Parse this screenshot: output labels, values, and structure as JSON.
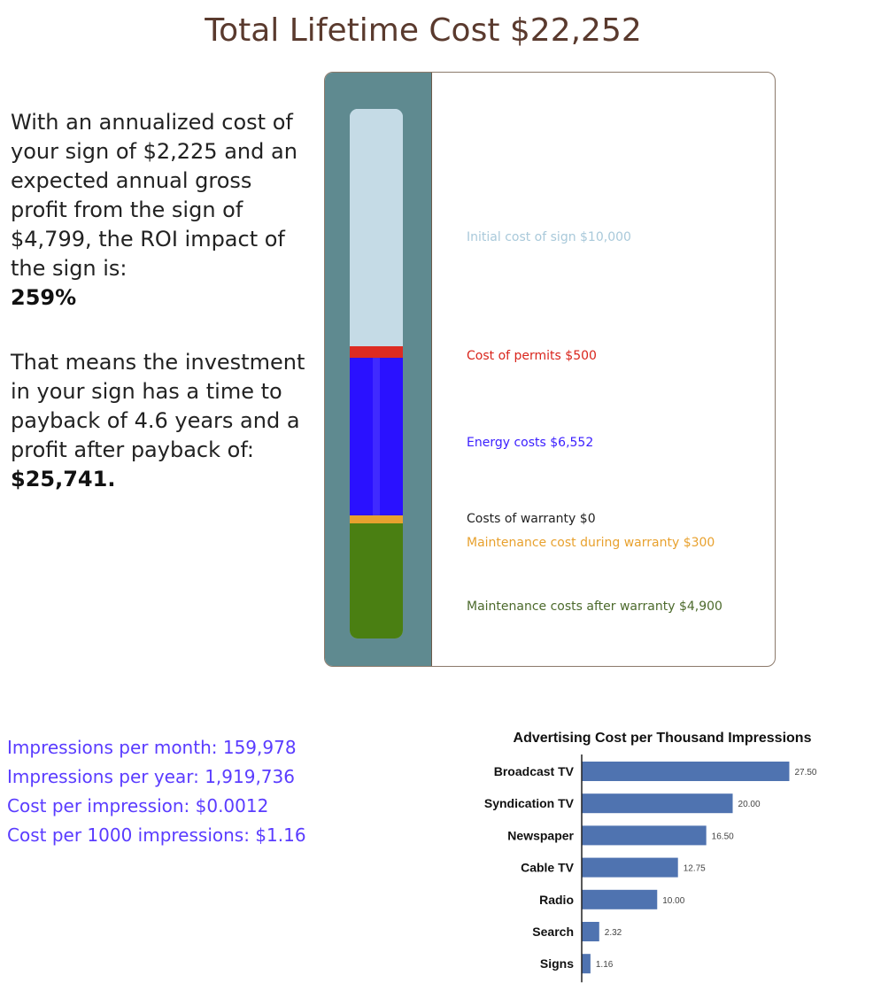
{
  "header": {
    "title": "Total Lifetime Cost $22,252"
  },
  "roi": {
    "paragraph1": "With an annualized cost of your sign of $2,225 and an expected annual gross profit from the sign of $4,799, the ROI impact of the sign is:",
    "roi_value": "259%",
    "paragraph2": "That means the investment in your sign has a time to payback of 4.6 years and a profit after payback of:",
    "profit_value": "$25,741."
  },
  "gauge": {
    "legend": {
      "initial": "Initial cost of sign $10,000",
      "permits": "Cost of permits $500",
      "energy": "Energy costs $6,552",
      "warranty": "Costs of warranty $0",
      "maintenance_warranty": "Maintenance cost during warranty $300",
      "maintenance_after": "Maintenance costs after warranty $4,900"
    },
    "colors": {
      "initial": "#c5dbe6",
      "permits": "#dd2b22",
      "energy": "#2a11ff",
      "maintenance_warranty": "#e8a12e",
      "maintenance_after": "#4a7f12",
      "panel": "#5f8a90"
    }
  },
  "impressions": {
    "per_month": "Impressions per month: 159,978",
    "per_year": "Impressions per year: 1,919,736",
    "cost_per_impression": "Cost per impression: $0.0012",
    "cost_per_1000": "Cost per 1000 impressions: $1.16"
  },
  "chart_data": {
    "type": "bar",
    "orientation": "horizontal",
    "title": "Advertising Cost per Thousand Impressions",
    "categories": [
      "Broadcast TV",
      "Syndication TV",
      "Newspaper",
      "Cable TV",
      "Radio",
      "Search",
      "Signs"
    ],
    "values": [
      27.5,
      20.0,
      16.5,
      12.75,
      10.0,
      2.32,
      1.16
    ],
    "value_labels": [
      "27.50",
      "20.00",
      "16.50",
      "12.75",
      "10.00",
      "2.32",
      "1.16"
    ],
    "bar_color": "#4f73b0",
    "xlim": [
      0,
      28.5
    ]
  }
}
